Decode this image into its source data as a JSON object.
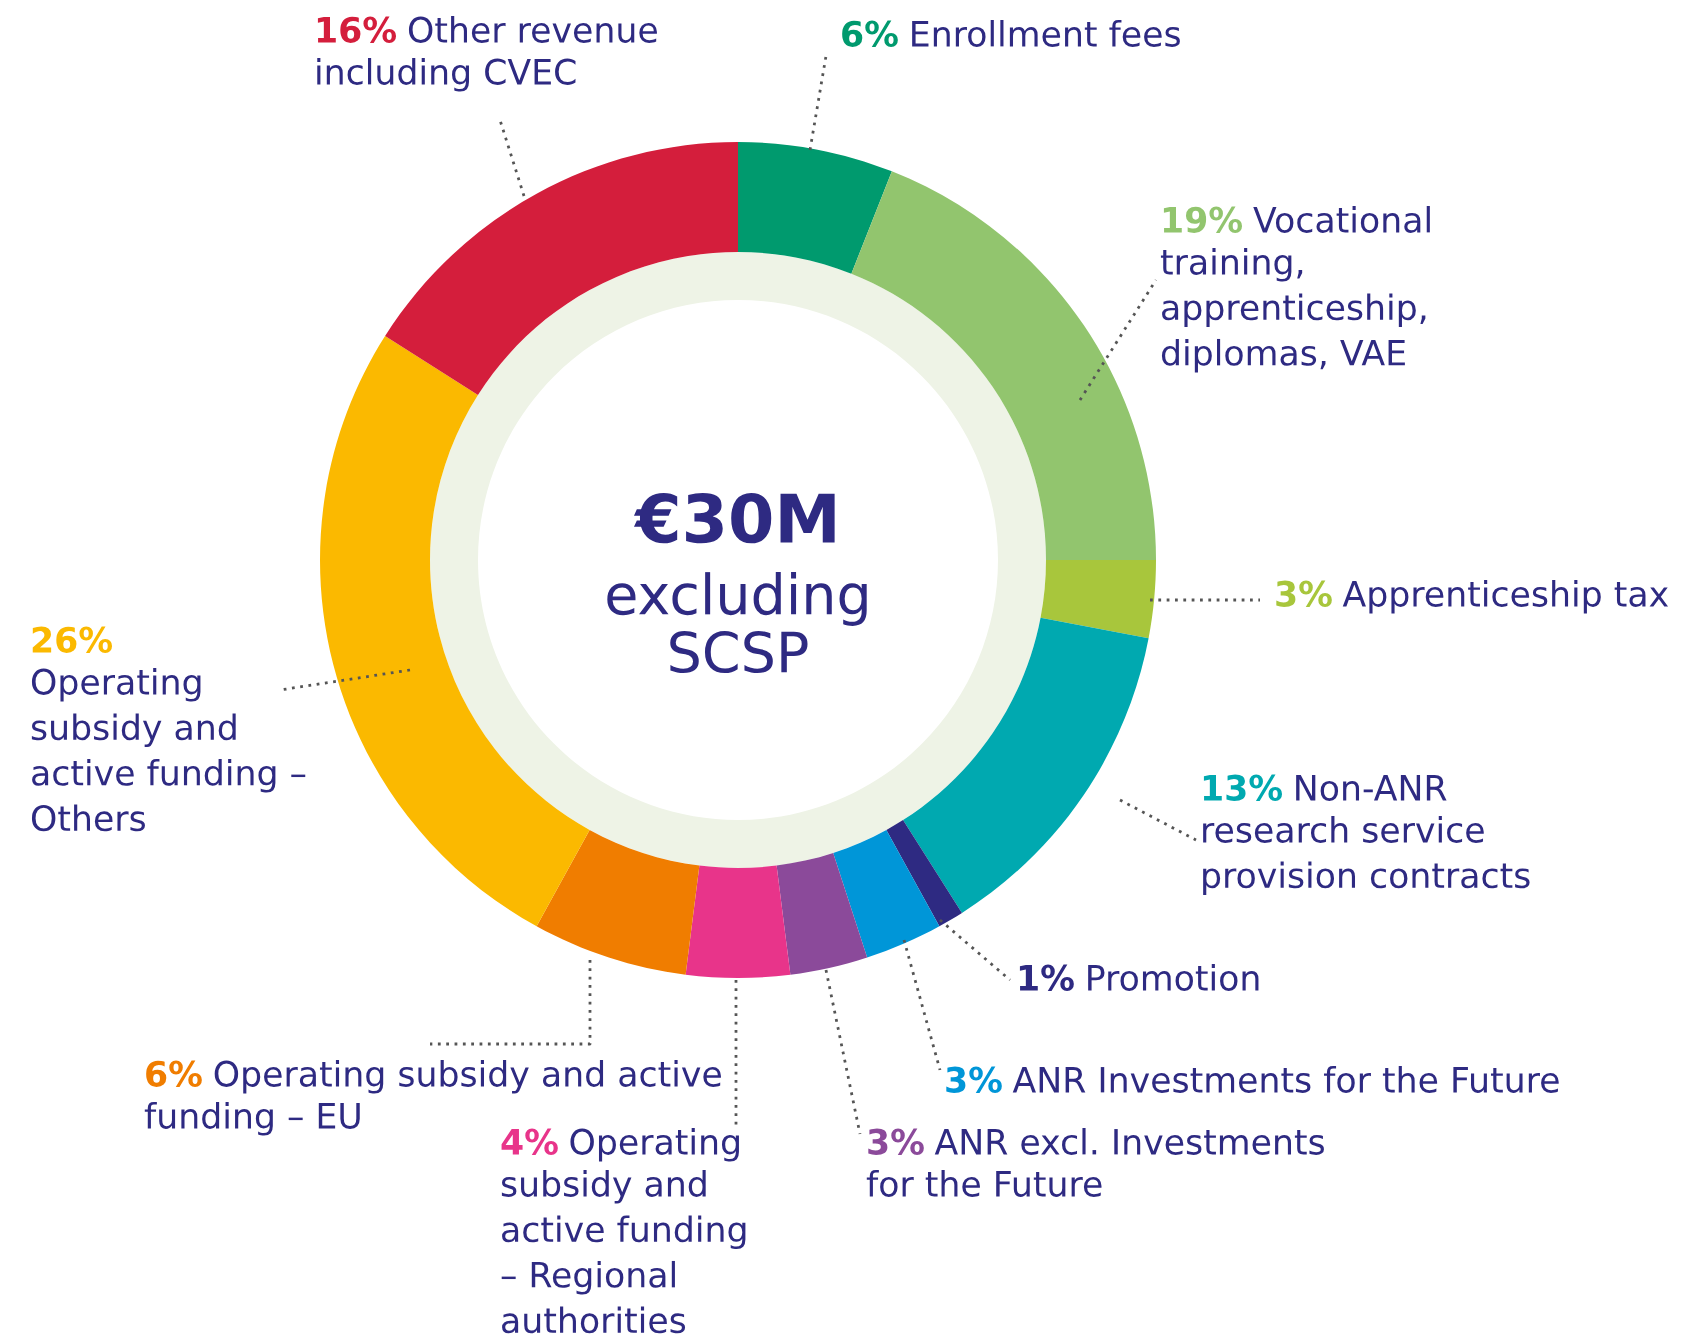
{
  "chart_data": {
    "type": "donut",
    "title": "€30M",
    "subtitle": "excluding\nSCSP",
    "categories": [
      "Enrollment fees",
      "Vocational\ntraining,\napprenticeship,\ndiplomas, VAE",
      "Apprenticeship tax",
      "Non-ANR\nresearch service\nprovision contracts",
      "Promotion",
      "ANR Investments for the Future",
      "ANR excl. Investments\nfor the Future",
      "Operating\nsubsidy and\nactive funding\n– Regional\nauthorities",
      "Operating subsidy and active\nfunding – EU",
      "Operating\nsubsidy and\nactive funding –\nOthers",
      "Other revenue\nincluding CVEC"
    ],
    "values": [
      6,
      19,
      3,
      13,
      1,
      3,
      3,
      4,
      6,
      26,
      16
    ],
    "value_labels": [
      "6%",
      "19%",
      "3%",
      "13%",
      "1%",
      "3%",
      "3%",
      "4%",
      "6%",
      "26%",
      "16%"
    ],
    "colors": [
      "#009a6e",
      "#92c56e",
      "#a8c63c",
      "#00a9b0",
      "#2e2a82",
      "#0096d8",
      "#8b4a9a",
      "#e8348a",
      "#f07d00",
      "#fbb900",
      "#d41e3c"
    ]
  }
}
